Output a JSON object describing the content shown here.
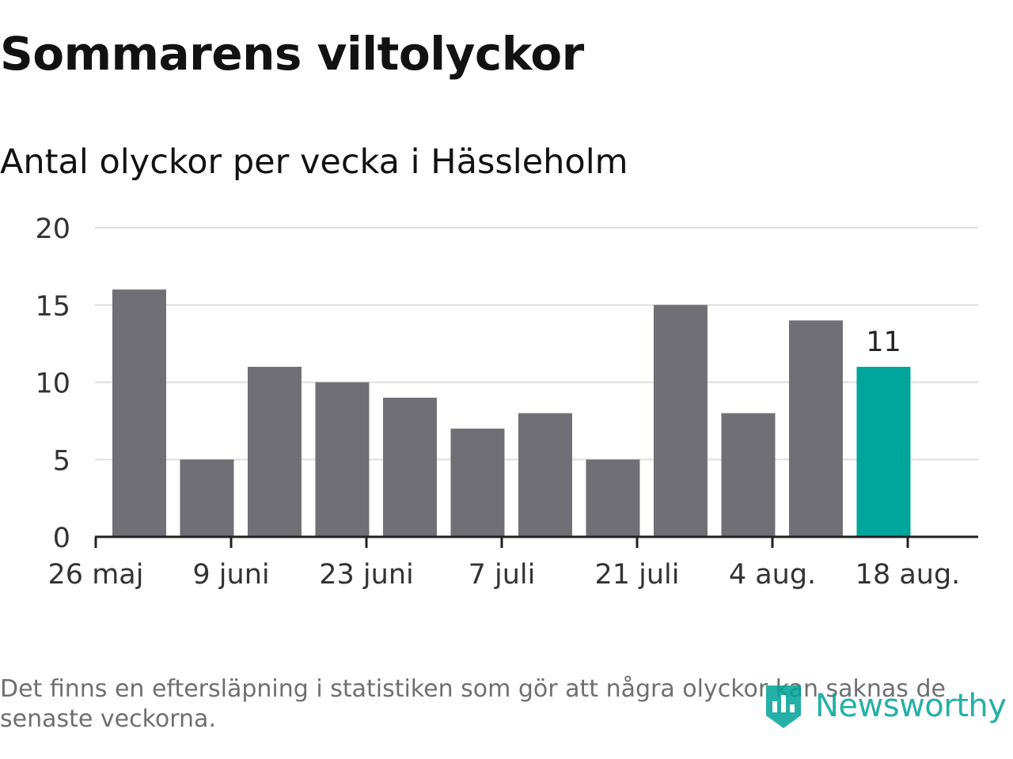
{
  "title": "Sommarens viltolyckor",
  "subtitle": "Antal olyckor per vecka i Hässleholm",
  "footnote": "Det finns en eftersläpning i statistiken som gör att några olyckor kan saknas de senaste veckorna.",
  "logo": {
    "text": "Newsworthy",
    "icon": "newsworthy-logo-icon"
  },
  "colors": {
    "bar": "#706f75",
    "highlight": "#00a59b",
    "grid": "#dedede",
    "axis": "#222222"
  },
  "chart_data": {
    "type": "bar",
    "title": "Sommarens viltolyckor",
    "subtitle": "Antal olyckor per vecka i Hässleholm",
    "xlabel": "",
    "ylabel": "",
    "categories": [
      "2019-05-27",
      "2019-06-03",
      "2019-06-10",
      "2019-06-17",
      "2019-06-24",
      "2019-07-01",
      "2019-07-08",
      "2019-07-15",
      "2019-07-22",
      "2019-07-29",
      "2019-08-05",
      "2019-08-12"
    ],
    "values": [
      16,
      5,
      11,
      10,
      9,
      7,
      8,
      5,
      15,
      8,
      14,
      11
    ],
    "highlight_index": 11,
    "data_labels": [
      {
        "index": 11,
        "text": "11"
      }
    ],
    "ylim": [
      0,
      20
    ],
    "yticks": [
      0,
      5,
      10,
      15,
      20
    ],
    "xticks": [
      {
        "date": "2019-05-26",
        "label": "26 maj"
      },
      {
        "date": "2019-06-09",
        "label": "9 juni"
      },
      {
        "date": "2019-06-23",
        "label": "23 juni"
      },
      {
        "date": "2019-07-07",
        "label": "7 juli"
      },
      {
        "date": "2019-07-21",
        "label": "21 juli"
      },
      {
        "date": "2019-08-04",
        "label": "4 aug."
      },
      {
        "date": "2019-08-18",
        "label": "18 aug."
      }
    ],
    "grid": true,
    "legend": "none"
  }
}
